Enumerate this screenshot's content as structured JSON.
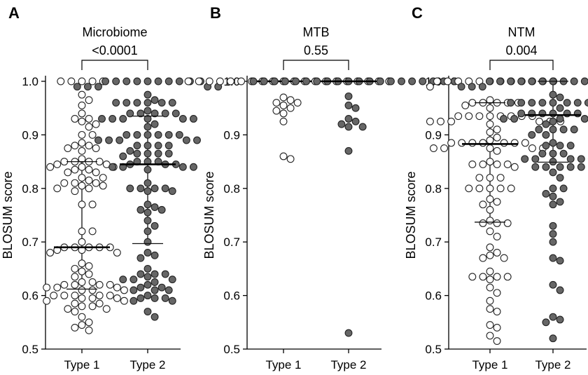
{
  "chart_data": [
    {
      "type": "scatter",
      "panel_label": "A",
      "title": "Microbiome",
      "p_value": "<0.0001",
      "ylabel": "BLOSUM score",
      "ylim": [
        0.5,
        1.0
      ],
      "yticks": [
        "0.5",
        "0.6",
        "0.7",
        "0.8",
        "0.9",
        "1.0"
      ],
      "categories": [
        "Type 1",
        "Type 2"
      ],
      "series": [
        {
          "fill": "#ffffff",
          "median": 0.69,
          "iqr": [
            0.612,
            0.85
          ],
          "values": [
            1,
            1,
            1,
            1,
            1,
            0.975,
            0.965,
            0.955,
            0.94,
            0.93,
            0.93,
            0.925,
            0.92,
            0.915,
            0.9,
            0.9,
            0.885,
            0.88,
            0.88,
            0.875,
            0.875,
            0.87,
            0.855,
            0.85,
            0.85,
            0.85,
            0.85,
            0.845,
            0.845,
            0.84,
            0.84,
            0.84,
            0.835,
            0.835,
            0.83,
            0.83,
            0.82,
            0.82,
            0.815,
            0.81,
            0.81,
            0.81,
            0.805,
            0.805,
            0.8,
            0.8,
            0.795,
            0.77,
            0.77,
            0.72,
            0.72,
            0.7,
            0.69,
            0.69,
            0.69,
            0.69,
            0.69,
            0.685,
            0.685,
            0.68,
            0.68,
            0.66,
            0.655,
            0.65,
            0.645,
            0.64,
            0.635,
            0.625,
            0.625,
            0.62,
            0.62,
            0.62,
            0.62,
            0.615,
            0.615,
            0.615,
            0.61,
            0.61,
            0.61,
            0.6,
            0.6,
            0.6,
            0.6,
            0.6,
            0.595,
            0.595,
            0.595,
            0.59,
            0.59,
            0.585,
            0.585,
            0.58,
            0.58,
            0.575,
            0.575,
            0.57,
            0.56,
            0.55,
            0.545,
            0.54,
            0.535
          ]
        },
        {
          "fill": "#666666",
          "median": 0.845,
          "iqr": [
            0.697,
            0.935
          ],
          "values": [
            1,
            1,
            1,
            1,
            1,
            1,
            1,
            1,
            1,
            1,
            0.99,
            0.99,
            0.99,
            0.99,
            0.99,
            0.975,
            0.965,
            0.96,
            0.96,
            0.96,
            0.96,
            0.96,
            0.96,
            0.945,
            0.94,
            0.94,
            0.94,
            0.94,
            0.94,
            0.93,
            0.93,
            0.93,
            0.93,
            0.93,
            0.93,
            0.92,
            0.915,
            0.9,
            0.9,
            0.9,
            0.9,
            0.9,
            0.9,
            0.89,
            0.89,
            0.89,
            0.89,
            0.89,
            0.88,
            0.88,
            0.88,
            0.88,
            0.87,
            0.865,
            0.865,
            0.865,
            0.865,
            0.86,
            0.85,
            0.85,
            0.85,
            0.845,
            0.845,
            0.845,
            0.84,
            0.84,
            0.84,
            0.84,
            0.835,
            0.81,
            0.8,
            0.8,
            0.8,
            0.8,
            0.795,
            0.795,
            0.77,
            0.765,
            0.76,
            0.76,
            0.755,
            0.74,
            0.73,
            0.72,
            0.7,
            0.68,
            0.675,
            0.67,
            0.65,
            0.64,
            0.64,
            0.64,
            0.635,
            0.63,
            0.63,
            0.63,
            0.625,
            0.62,
            0.615,
            0.615,
            0.61,
            0.61,
            0.61,
            0.6,
            0.595,
            0.595,
            0.595,
            0.59,
            0.59,
            0.57,
            0.56
          ]
        }
      ]
    },
    {
      "type": "scatter",
      "panel_label": "B",
      "title": "MTB",
      "p_value": "0.55",
      "ylabel": "BLOSUM score",
      "ylim": [
        0.5,
        1.0
      ],
      "yticks": [
        "0.5",
        "0.6",
        "0.7",
        "0.8",
        "0.9",
        "1.0"
      ],
      "categories": [
        "Type 1",
        "Type 2"
      ],
      "series": [
        {
          "fill": "#ffffff",
          "median": 1.0,
          "iqr": [
            1.0,
            1.0
          ],
          "values": [
            1,
            1,
            1,
            1,
            1,
            1,
            1,
            1,
            1,
            1,
            1,
            1,
            1,
            1,
            1,
            1,
            1,
            1,
            1,
            1,
            1,
            1,
            1,
            1,
            0.97,
            0.965,
            0.96,
            0.96,
            0.955,
            0.95,
            0.945,
            0.94,
            0.925,
            0.86,
            0.855
          ]
        },
        {
          "fill": "#666666",
          "median": 1.0,
          "iqr": [
            1.0,
            1.0
          ],
          "values": [
            1,
            1,
            1,
            1,
            1,
            1,
            1,
            1,
            1,
            1,
            1,
            1,
            1,
            1,
            1,
            1,
            1,
            1,
            1,
            1,
            1,
            1,
            1,
            1,
            0.972,
            0.955,
            0.95,
            0.93,
            0.925,
            0.92,
            0.915,
            0.915,
            0.87,
            0.53
          ]
        }
      ]
    },
    {
      "type": "scatter",
      "panel_label": "C",
      "title": "NTM",
      "p_value": "0.004",
      "ylabel": "BLOSUM score",
      "ylim": [
        0.5,
        1.0
      ],
      "yticks": [
        "0.5",
        "0.6",
        "0.7",
        "0.8",
        "0.9",
        "1.0"
      ],
      "categories": [
        "Type 1",
        "Type 2"
      ],
      "series": [
        {
          "fill": "#ffffff",
          "median": 0.883,
          "iqr": [
            0.737,
            0.96
          ],
          "values": [
            1,
            1,
            1,
            1,
            1,
            1,
            1,
            1,
            1,
            1,
            1,
            1,
            0.99,
            0.965,
            0.96,
            0.96,
            0.96,
            0.96,
            0.96,
            0.955,
            0.95,
            0.935,
            0.935,
            0.935,
            0.935,
            0.935,
            0.935,
            0.935,
            0.935,
            0.925,
            0.925,
            0.925,
            0.925,
            0.925,
            0.925,
            0.92,
            0.91,
            0.905,
            0.895,
            0.89,
            0.885,
            0.885,
            0.885,
            0.885,
            0.885,
            0.885,
            0.885,
            0.875,
            0.875,
            0.875,
            0.875,
            0.875,
            0.87,
            0.85,
            0.845,
            0.845,
            0.845,
            0.845,
            0.84,
            0.82,
            0.82,
            0.82,
            0.8,
            0.8,
            0.8,
            0.8,
            0.8,
            0.78,
            0.775,
            0.77,
            0.76,
            0.74,
            0.735,
            0.735,
            0.735,
            0.72,
            0.71,
            0.69,
            0.68,
            0.675,
            0.67,
            0.67,
            0.645,
            0.635,
            0.635,
            0.635,
            0.635,
            0.63,
            0.615,
            0.605,
            0.59,
            0.575,
            0.57,
            0.545,
            0.54,
            0.525,
            0.515
          ]
        },
        {
          "fill": "#666666",
          "median": 0.937,
          "iqr": [
            0.849,
            1.0
          ],
          "values": [
            1,
            1,
            1,
            1,
            1,
            1,
            1,
            1,
            1,
            1,
            1,
            1,
            1,
            1,
            0.99,
            0.99,
            0.99,
            0.99,
            0.99,
            0.975,
            0.97,
            0.96,
            0.96,
            0.96,
            0.96,
            0.96,
            0.96,
            0.96,
            0.96,
            0.95,
            0.95,
            0.94,
            0.94,
            0.94,
            0.94,
            0.94,
            0.94,
            0.93,
            0.93,
            0.93,
            0.93,
            0.93,
            0.93,
            0.925,
            0.92,
            0.91,
            0.91,
            0.91,
            0.91,
            0.9,
            0.9,
            0.885,
            0.88,
            0.88,
            0.88,
            0.865,
            0.865,
            0.865,
            0.855,
            0.855,
            0.855,
            0.855,
            0.855,
            0.85,
            0.84,
            0.84,
            0.84,
            0.84,
            0.84,
            0.83,
            0.82,
            0.8,
            0.8,
            0.79,
            0.785,
            0.775,
            0.77,
            0.73,
            0.715,
            0.7,
            0.67,
            0.665,
            0.62,
            0.61,
            0.56,
            0.555,
            0.55,
            0.52
          ]
        }
      ]
    }
  ]
}
